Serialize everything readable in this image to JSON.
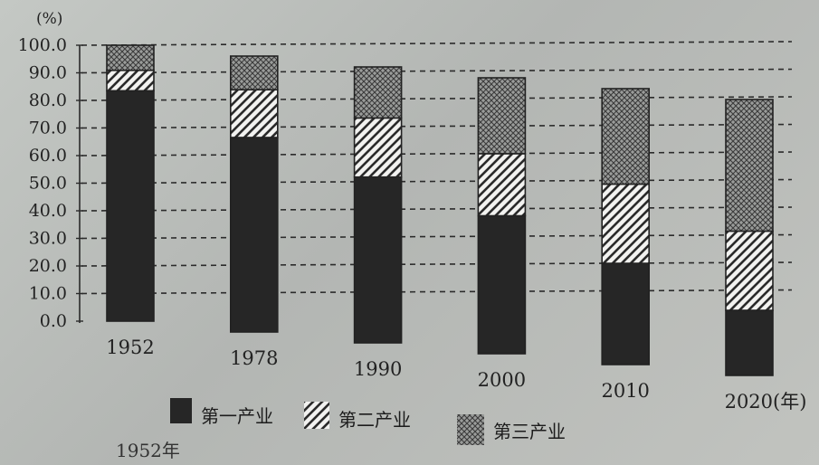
{
  "chart_data": {
    "type": "bar",
    "stacked": true,
    "ylabel": "(%)",
    "xlabel": "(年)",
    "ylim": [
      0,
      100
    ],
    "yticks": [
      "0.0",
      "10.0",
      "20.0",
      "30.0",
      "40.0",
      "50.0",
      "60.0",
      "70.0",
      "80.0",
      "90.0",
      "100.0"
    ],
    "grid": true,
    "legend_position": "bottom",
    "categories": [
      "1952",
      "1978",
      "1990",
      "2000",
      "2010",
      "2020"
    ],
    "last_category_suffix": "(年)",
    "series": [
      {
        "name": "第一产业",
        "pattern": "solid",
        "values": [
          83.5,
          70.5,
          60.1,
          50.0,
          36.7,
          23.6
        ]
      },
      {
        "name": "第二产业",
        "pattern": "hatch",
        "values": [
          7.4,
          17.3,
          21.4,
          22.5,
          28.7,
          28.7
        ]
      },
      {
        "name": "第三产业",
        "pattern": "crosshatch",
        "values": [
          9.1,
          12.2,
          18.5,
          27.5,
          34.6,
          47.7
        ]
      }
    ]
  },
  "footer_text": "1952年"
}
